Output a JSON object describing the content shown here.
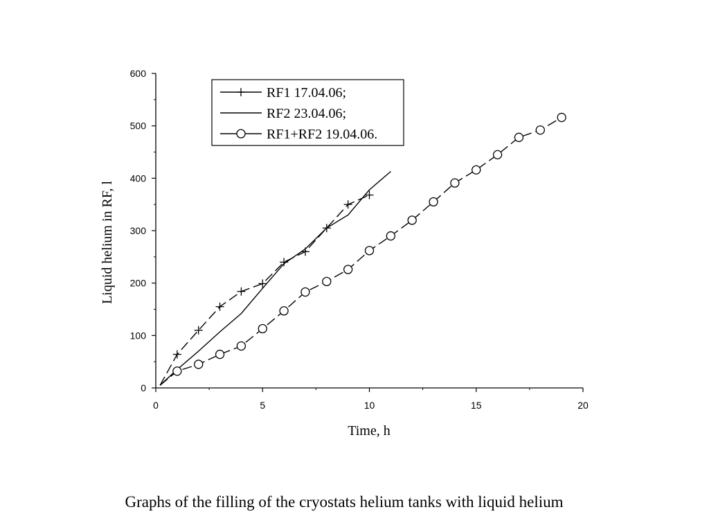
{
  "chart_data": {
    "type": "line",
    "title": "",
    "xlabel": "Time, h",
    "ylabel": "Liquid helium in RF, l",
    "xlim": [
      0,
      20
    ],
    "ylim": [
      0,
      600
    ],
    "x_ticks": [
      "0",
      "5",
      "10",
      "15",
      "20"
    ],
    "y_ticks": [
      "0",
      "100",
      "200",
      "300",
      "400",
      "500",
      "600"
    ],
    "grid": false,
    "legend_position": "top-center",
    "series": [
      {
        "name": "RF1 17.04.06;",
        "marker": "plus",
        "line_style": "dashed",
        "color": "#000000",
        "points": [
          [
            0.2,
            5
          ],
          [
            1,
            64
          ],
          [
            2,
            110
          ],
          [
            3,
            155
          ],
          [
            4,
            184
          ],
          [
            5,
            199
          ],
          [
            6,
            240
          ],
          [
            7,
            260
          ],
          [
            8,
            305
          ],
          [
            9,
            350
          ],
          [
            10,
            368
          ]
        ]
      },
      {
        "name": "RF2 23.04.06;",
        "marker": "none",
        "line_style": "solid",
        "color": "#000000",
        "points": [
          [
            0.2,
            5
          ],
          [
            1,
            35
          ],
          [
            2,
            70
          ],
          [
            3,
            107
          ],
          [
            4,
            142
          ],
          [
            5,
            190
          ],
          [
            6,
            237
          ],
          [
            7,
            265
          ],
          [
            8,
            305
          ],
          [
            9,
            330
          ],
          [
            10,
            378
          ],
          [
            11,
            413
          ]
        ]
      },
      {
        "name": "RF1+RF2 19.04.06.",
        "marker": "circle",
        "line_style": "dashed",
        "color": "#000000",
        "points": [
          [
            0.2,
            5
          ],
          [
            1,
            32
          ],
          [
            2,
            45
          ],
          [
            3,
            64
          ],
          [
            4,
            80
          ],
          [
            5,
            113
          ],
          [
            6,
            147
          ],
          [
            7,
            183
          ],
          [
            8,
            203
          ],
          [
            9,
            226
          ],
          [
            10,
            262
          ],
          [
            11,
            290
          ],
          [
            12,
            320
          ],
          [
            13,
            355
          ],
          [
            14,
            391
          ],
          [
            15,
            416
          ],
          [
            16,
            445
          ],
          [
            17,
            478
          ],
          [
            18,
            492
          ],
          [
            19,
            516
          ]
        ]
      }
    ]
  },
  "caption": "Graphs of the filling of the cryostats helium tanks with liquid helium"
}
